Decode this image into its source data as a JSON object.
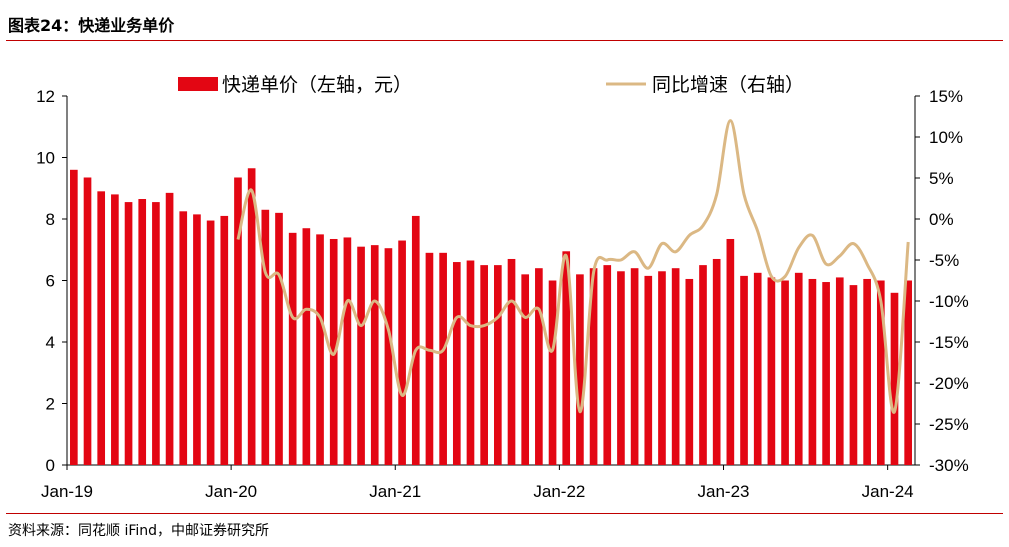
{
  "figure_title": "图表24：快递业务单价",
  "source": "资料来源：同花顺 iFind，中邮证券研究所",
  "colors": {
    "bar": "#e30613",
    "line": "#dbb884",
    "rule": "#c00000"
  },
  "chart_data": {
    "type": "bar+line",
    "x_tick_labels": [
      "Jan-19",
      "Jan-20",
      "Jan-21",
      "Jan-22",
      "Jan-23",
      "Jan-24"
    ],
    "x_tick_index": [
      0,
      12,
      24,
      36,
      48,
      60
    ],
    "left_axis": {
      "ylim": [
        0,
        12
      ],
      "ticks": [
        "0",
        "2",
        "4",
        "6",
        "8",
        "10",
        "12"
      ]
    },
    "right_axis": {
      "ylim": [
        -30,
        15
      ],
      "ticks": [
        "-30%",
        "-25%",
        "-20%",
        "-15%",
        "-10%",
        "-5%",
        "0%",
        "5%",
        "10%",
        "15%"
      ]
    },
    "legend_position": "top",
    "series": [
      {
        "name": "快递单价（左轴，元）",
        "type": "bar",
        "axis": "left",
        "values": [
          9.6,
          9.35,
          8.9,
          8.8,
          8.55,
          8.65,
          8.55,
          8.85,
          8.25,
          8.15,
          7.95,
          8.1,
          9.35,
          9.65,
          8.3,
          8.2,
          7.55,
          7.7,
          7.5,
          7.35,
          7.4,
          7.1,
          7.15,
          7.05,
          7.3,
          8.1,
          6.9,
          6.9,
          6.6,
          6.65,
          6.5,
          6.5,
          6.7,
          6.2,
          6.4,
          6.0,
          6.95,
          6.2,
          6.4,
          6.5,
          6.3,
          6.4,
          6.15,
          6.3,
          6.4,
          6.05,
          6.5,
          6.7,
          7.35,
          6.15,
          6.25,
          6.1,
          6.0,
          6.25,
          6.05,
          5.95,
          6.1,
          5.85,
          6.05,
          6.0,
          5.6,
          6.0
        ]
      },
      {
        "name": "同比增速（右轴）",
        "type": "line",
        "axis": "right",
        "values": [
          null,
          null,
          null,
          null,
          null,
          null,
          null,
          null,
          null,
          null,
          null,
          null,
          -2.5,
          3.5,
          -6.5,
          -6.8,
          -12,
          -11,
          -12,
          -16.5,
          -10,
          -13,
          -10,
          -13.5,
          -21.5,
          -16,
          -16,
          -16,
          -12,
          -13,
          -13,
          -12,
          -10,
          -12,
          -11,
          -16,
          -4.5,
          -23.5,
          -6.5,
          -5,
          -5,
          -4,
          -6,
          -3,
          -4,
          -2,
          -0.8,
          3,
          12,
          3,
          -1.5,
          -7,
          -7,
          -3.5,
          -2,
          -5.5,
          -4.5,
          -3,
          -5.5,
          -10,
          -23.5,
          -2.8
        ]
      }
    ]
  }
}
